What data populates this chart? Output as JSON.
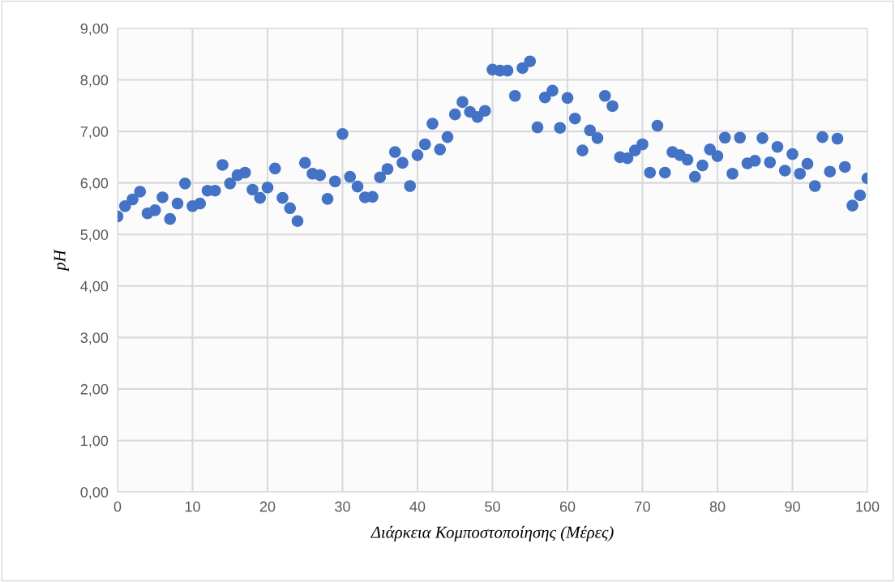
{
  "chart_data": {
    "type": "scatter",
    "xlabel": "Διάρκεια Κομποστοποίησης (Μέρες)",
    "ylabel": "pH",
    "x": [
      0,
      1,
      2,
      3,
      4,
      5,
      6,
      7,
      8,
      9,
      10,
      11,
      12,
      13,
      14,
      15,
      16,
      17,
      18,
      19,
      20,
      21,
      22,
      23,
      24,
      25,
      26,
      27,
      28,
      29,
      30,
      31,
      32,
      33,
      34,
      35,
      36,
      37,
      38,
      39,
      40,
      41,
      42,
      43,
      44,
      45,
      46,
      47,
      48,
      49,
      50,
      51,
      52,
      53,
      54,
      55,
      56,
      57,
      58,
      59,
      60,
      61,
      62,
      63,
      64,
      65,
      66,
      67,
      68,
      69,
      70,
      71,
      72,
      73,
      74,
      75,
      76,
      77,
      78,
      79,
      80,
      81,
      82,
      83,
      84,
      85,
      86,
      87,
      88,
      89,
      90,
      91,
      92,
      93,
      94,
      95,
      96,
      97,
      98,
      99,
      100
    ],
    "series": [
      {
        "color": "#4472c4",
        "values": [
          5.35,
          5.55,
          5.68,
          5.83,
          5.41,
          5.47,
          5.72,
          5.3,
          5.6,
          5.99,
          5.55,
          5.6,
          5.85,
          5.85,
          6.35,
          5.99,
          6.15,
          6.2,
          5.87,
          5.71,
          5.91,
          6.28,
          5.71,
          5.51,
          5.26,
          6.39,
          6.18,
          6.15,
          5.69,
          6.03,
          6.95,
          6.12,
          5.93,
          5.72,
          5.73,
          6.11,
          6.27,
          6.6,
          6.39,
          5.94,
          6.54,
          6.75,
          7.15,
          6.65,
          6.89,
          7.33,
          7.57,
          7.38,
          7.28,
          7.4,
          8.2,
          8.18,
          8.18,
          7.69,
          8.23,
          8.36,
          7.08,
          7.66,
          7.79,
          7.07,
          7.65,
          7.25,
          6.63,
          7.02,
          6.87,
          7.69,
          7.49,
          6.5,
          6.48,
          6.63,
          6.75,
          6.2,
          7.11,
          6.2,
          6.6,
          6.54,
          6.45,
          6.12,
          6.34,
          6.65,
          6.52,
          6.88,
          6.18,
          6.88,
          6.38,
          6.43,
          6.87,
          6.4,
          6.7,
          6.24,
          6.56,
          6.18,
          6.37,
          5.94,
          6.89,
          6.22,
          6.86,
          6.31,
          5.56,
          5.76,
          6.09
        ]
      }
    ],
    "xlim": [
      0,
      100
    ],
    "xticks": [
      0,
      10,
      20,
      30,
      40,
      50,
      60,
      70,
      80,
      90,
      100
    ],
    "ylim": [
      0,
      9
    ],
    "yticks": [
      {
        "value": 0,
        "label": "0,00"
      },
      {
        "value": 1,
        "label": "1,00"
      },
      {
        "value": 2,
        "label": "2,00"
      },
      {
        "value": 3,
        "label": "3,00"
      },
      {
        "value": 4,
        "label": "4,00"
      },
      {
        "value": 5,
        "label": "5,00"
      },
      {
        "value": 6,
        "label": "6,00"
      },
      {
        "value": 7,
        "label": "7,00"
      },
      {
        "value": 8,
        "label": "8,00"
      },
      {
        "value": 9,
        "label": "9,00"
      }
    ],
    "grid": true,
    "marker": "circle"
  }
}
